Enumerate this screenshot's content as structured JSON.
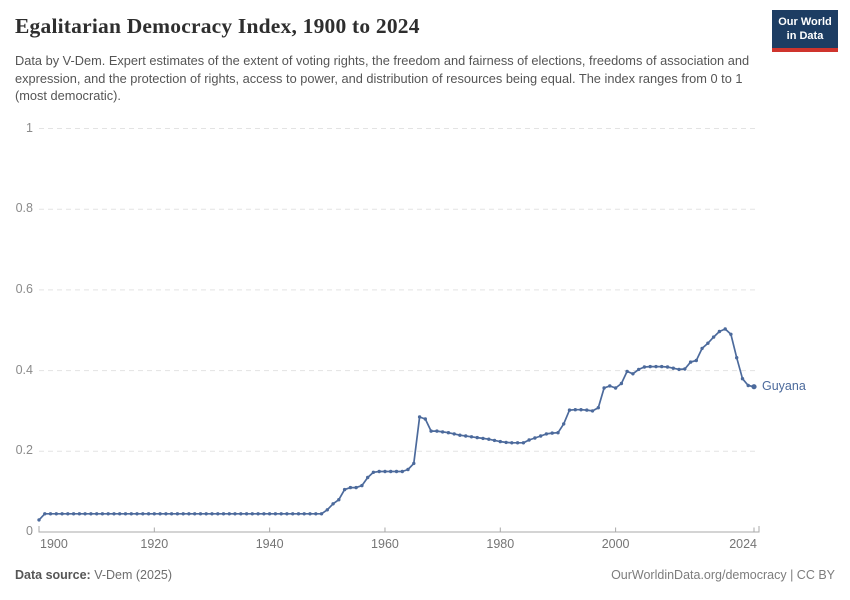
{
  "header": {
    "title": "Egalitarian Democracy Index, 1900 to 2024",
    "subtitle": "Data by V-Dem. Expert estimates of the extent of voting rights, the freedom and fairness of elections, freedoms of association and expression, and the protection of rights, access to power, and distribution of resources being equal. The index ranges from 0 to 1 (most democratic).",
    "logo": {
      "line1": "Our World",
      "line2": "in Data"
    }
  },
  "chart_data": {
    "type": "line",
    "title": "Egalitarian Democracy Index, 1900 to 2024",
    "xlabel": "",
    "ylabel": "",
    "xlim": [
      1900,
      2024
    ],
    "ylim": [
      0,
      1
    ],
    "x_ticks": [
      1900,
      1920,
      1940,
      1960,
      1980,
      2000,
      2024
    ],
    "y_ticks": [
      0,
      0.2,
      0.4,
      0.6,
      0.8,
      1
    ],
    "grid": "horizontal-dashed",
    "legend_position": "end-of-line",
    "series": [
      {
        "name": "Guyana",
        "color": "#4C6A9C",
        "start_year": 1900,
        "values": [
          0.03,
          0.045,
          0.045,
          0.045,
          0.045,
          0.045,
          0.045,
          0.045,
          0.045,
          0.045,
          0.045,
          0.045,
          0.045,
          0.045,
          0.045,
          0.045,
          0.045,
          0.045,
          0.045,
          0.045,
          0.045,
          0.045,
          0.045,
          0.045,
          0.045,
          0.045,
          0.045,
          0.045,
          0.045,
          0.045,
          0.045,
          0.045,
          0.045,
          0.045,
          0.045,
          0.045,
          0.045,
          0.045,
          0.045,
          0.045,
          0.045,
          0.045,
          0.045,
          0.045,
          0.045,
          0.045,
          0.045,
          0.045,
          0.045,
          0.045,
          0.055,
          0.07,
          0.08,
          0.105,
          0.11,
          0.11,
          0.115,
          0.135,
          0.148,
          0.15,
          0.15,
          0.15,
          0.15,
          0.15,
          0.155,
          0.17,
          0.285,
          0.28,
          0.25,
          0.25,
          0.248,
          0.246,
          0.243,
          0.24,
          0.238,
          0.236,
          0.234,
          0.232,
          0.23,
          0.227,
          0.224,
          0.222,
          0.221,
          0.221,
          0.221,
          0.228,
          0.233,
          0.238,
          0.243,
          0.245,
          0.246,
          0.268,
          0.302,
          0.303,
          0.303,
          0.302,
          0.3,
          0.308,
          0.357,
          0.362,
          0.357,
          0.368,
          0.398,
          0.392,
          0.403,
          0.409,
          0.41,
          0.41,
          0.41,
          0.409,
          0.406,
          0.403,
          0.404,
          0.421,
          0.425,
          0.455,
          0.468,
          0.483,
          0.497,
          0.503,
          0.49,
          0.432,
          0.38,
          0.363,
          0.36
        ]
      }
    ]
  },
  "footer": {
    "source_label": "Data source:",
    "source_value": " V-Dem (2025)",
    "right_text": "OurWorldinData.org/democracy | CC BY"
  },
  "colors": {
    "line": "#4C6A9C",
    "gridline": "#e3e3e3",
    "axis": "#a8a8a8",
    "logo_bg": "#1d3d63",
    "logo_stripe": "#cf342d"
  }
}
